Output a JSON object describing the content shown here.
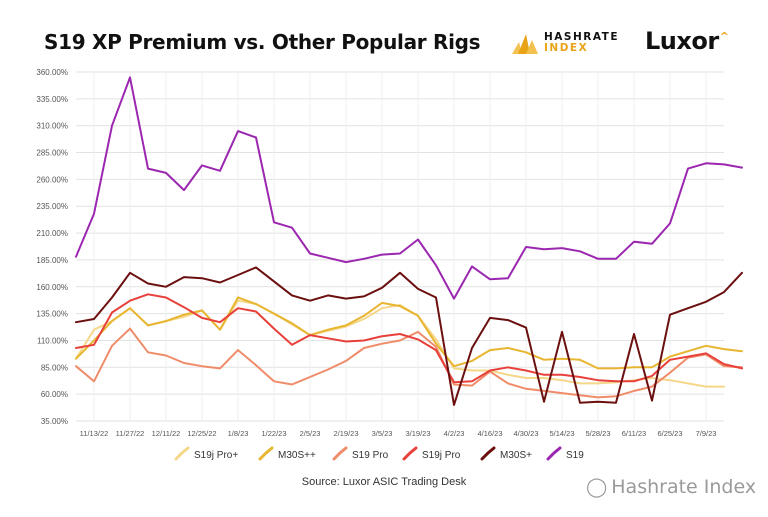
{
  "header": {
    "title": "S19 XP Premium vs. Other Popular Rigs",
    "logo_hashrate_line1": "HASHRATE",
    "logo_hashrate_line2": "INDEX",
    "logo_luxor": "Luxor"
  },
  "footer": {
    "source": "Source: Luxor ASIC Trading Desk",
    "watermark": "Hashrate Index"
  },
  "chart_data": {
    "type": "line",
    "title": "S19 XP Premium vs. Other Popular Rigs",
    "xlabel": "",
    "ylabel": "",
    "ylim": [
      35,
      360
    ],
    "y_ticks": [
      "35.00%",
      "60.00%",
      "85.00%",
      "110.00%",
      "135.00%",
      "160.00%",
      "185.00%",
      "210.00%",
      "235.00%",
      "260.00%",
      "285.00%",
      "310.00%",
      "335.00%",
      "360.00%"
    ],
    "y_tick_values": [
      35,
      60,
      85,
      110,
      135,
      160,
      185,
      210,
      235,
      260,
      285,
      310,
      335,
      360
    ],
    "x_tick_labels": [
      "11/13/22",
      "11/27/22",
      "12/11/22",
      "12/25/22",
      "1/8/23",
      "1/22/23",
      "2/5/23",
      "2/19/23",
      "3/5/23",
      "3/19/23",
      "4/2/23",
      "4/16/23",
      "4/30/23",
      "5/14/23",
      "5/28/23",
      "6/11/23",
      "6/25/23",
      "7/9/23"
    ],
    "x_tick_positions": [
      1,
      3,
      5,
      7,
      9,
      11,
      13,
      15,
      17,
      19,
      21,
      23,
      25,
      27,
      29,
      31,
      33,
      35
    ],
    "grid": true,
    "legend_position": "bottom",
    "series": [
      {
        "name": "S19j Pro+",
        "color": "#f5d78a",
        "values": [
          93,
          120,
          128,
          140,
          124,
          128,
          132,
          138,
          120,
          147,
          144,
          135,
          125,
          115,
          119,
          123,
          130,
          140,
          143,
          133,
          111,
          84,
          82,
          82,
          78,
          75,
          75,
          73,
          70,
          70,
          71,
          73,
          75,
          73,
          70,
          67,
          67
        ]
      },
      {
        "name": "M30S++",
        "color": "#e8b530",
        "values": [
          93,
          110,
          128,
          140,
          124,
          128,
          134,
          138,
          120,
          150,
          144,
          135,
          126,
          115,
          120,
          124,
          133,
          145,
          142,
          133,
          107,
          86,
          91,
          101,
          103,
          99,
          92,
          93,
          92,
          84,
          84,
          85,
          85,
          95,
          100,
          105,
          102,
          100
        ]
      },
      {
        "name": "S19 Pro",
        "color": "#ef8c6a",
        "values": [
          86,
          72,
          105,
          121,
          99,
          96,
          89,
          86,
          84,
          101,
          87,
          72,
          69,
          76,
          83,
          91,
          103,
          107,
          110,
          118,
          104,
          69,
          68,
          81,
          70,
          65,
          63,
          61,
          59,
          57,
          58,
          63,
          67,
          80,
          94,
          97,
          86,
          85
        ]
      },
      {
        "name": "S19j Pro",
        "color": "#e8403a",
        "values": [
          103,
          106,
          136,
          147,
          153,
          150,
          141,
          131,
          127,
          140,
          137,
          121,
          106,
          115,
          112,
          109,
          110,
          114,
          116,
          111,
          101,
          71,
          72,
          82,
          85,
          82,
          78,
          78,
          76,
          73,
          72,
          72,
          77,
          92,
          95,
          98,
          88,
          84
        ]
      },
      {
        "name": "M30S+",
        "color": "#6b0f0f",
        "values": [
          127,
          130,
          150,
          173,
          163,
          160,
          169,
          168,
          164,
          171,
          178,
          165,
          152,
          147,
          152,
          149,
          151,
          159,
          173,
          158,
          150,
          50,
          103,
          131,
          129,
          122,
          53,
          118,
          52,
          53,
          52,
          116,
          54,
          134,
          140,
          146,
          155,
          173
        ]
      },
      {
        "name": "S19",
        "color": "#9b27b0",
        "values": [
          188,
          228,
          310,
          355,
          270,
          266,
          250,
          273,
          268,
          305,
          299,
          220,
          215,
          191,
          187,
          183,
          186,
          190,
          191,
          204,
          180,
          149,
          179,
          167,
          168,
          197,
          195,
          196,
          193,
          186,
          186,
          202,
          200,
          219,
          270,
          275,
          274,
          271
        ]
      }
    ]
  }
}
